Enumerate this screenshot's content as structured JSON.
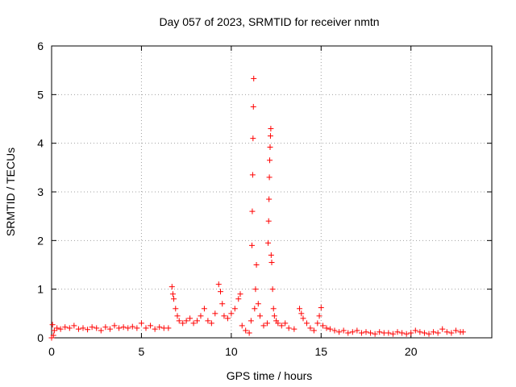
{
  "chart_data": {
    "type": "scatter",
    "title": "Day 057 of 2023, SRMTID for receiver nmtn",
    "xlabel": "GPS time / hours",
    "ylabel": "SRMTID / TECUs",
    "xlim": [
      0,
      24.5
    ],
    "ylim": [
      0,
      6
    ],
    "xticks": [
      "0",
      "5",
      "10",
      "15",
      "20"
    ],
    "yticks": [
      "0",
      "1",
      "2",
      "3",
      "4",
      "5",
      "6"
    ],
    "grid": true,
    "marker": "+",
    "color": "#ff0000",
    "series": [
      {
        "name": "SRMTID",
        "x": [
          0.0,
          0.05,
          0.1,
          0.15,
          0.3,
          0.5,
          0.75,
          1.0,
          1.25,
          1.5,
          1.75,
          2.0,
          2.25,
          2.5,
          2.75,
          3.0,
          3.25,
          3.5,
          3.75,
          4.0,
          4.25,
          4.5,
          4.75,
          5.0,
          5.25,
          5.5,
          5.75,
          6.0,
          6.25,
          6.5,
          6.7,
          6.75,
          6.8,
          6.9,
          7.0,
          7.1,
          7.3,
          7.5,
          7.7,
          7.9,
          8.1,
          8.3,
          8.5,
          8.7,
          8.9,
          9.1,
          9.3,
          9.4,
          9.5,
          9.6,
          9.8,
          10.0,
          10.2,
          10.4,
          10.5,
          10.6,
          10.8,
          11.0,
          11.1,
          11.15,
          11.17,
          11.19,
          11.21,
          11.23,
          11.25,
          11.3,
          11.35,
          11.4,
          11.5,
          11.6,
          11.8,
          12.0,
          12.05,
          12.08,
          12.1,
          12.12,
          12.14,
          12.16,
          12.18,
          12.2,
          12.22,
          12.25,
          12.3,
          12.35,
          12.4,
          12.5,
          12.6,
          12.8,
          13.0,
          13.2,
          13.5,
          13.8,
          13.9,
          14.0,
          14.2,
          14.4,
          14.6,
          14.8,
          14.9,
          15.0,
          15.1,
          15.3,
          15.5,
          15.75,
          16.0,
          16.25,
          16.5,
          16.75,
          17.0,
          17.25,
          17.5,
          17.75,
          18.0,
          18.25,
          18.5,
          18.75,
          19.0,
          19.25,
          19.5,
          19.75,
          20.0,
          20.25,
          20.5,
          20.75,
          21.0,
          21.25,
          21.5,
          21.75,
          22.0,
          22.25,
          22.5,
          22.75,
          22.9
        ],
        "y": [
          0.0,
          0.27,
          0.05,
          0.15,
          0.2,
          0.18,
          0.22,
          0.2,
          0.25,
          0.18,
          0.2,
          0.17,
          0.22,
          0.2,
          0.15,
          0.22,
          0.18,
          0.25,
          0.2,
          0.22,
          0.2,
          0.23,
          0.2,
          0.3,
          0.2,
          0.25,
          0.18,
          0.22,
          0.2,
          0.2,
          1.05,
          0.9,
          0.8,
          0.6,
          0.45,
          0.35,
          0.3,
          0.35,
          0.4,
          0.3,
          0.35,
          0.45,
          0.6,
          0.35,
          0.3,
          0.5,
          1.1,
          0.95,
          0.7,
          0.45,
          0.4,
          0.5,
          0.6,
          0.8,
          0.9,
          0.25,
          0.15,
          0.1,
          0.35,
          1.9,
          2.6,
          3.35,
          4.1,
          4.75,
          5.33,
          0.6,
          1.0,
          1.5,
          0.7,
          0.45,
          0.25,
          0.3,
          1.95,
          2.4,
          2.85,
          3.3,
          3.65,
          3.92,
          4.15,
          4.3,
          1.7,
          1.55,
          1.0,
          0.6,
          0.45,
          0.35,
          0.3,
          0.25,
          0.3,
          0.2,
          0.18,
          0.6,
          0.5,
          0.4,
          0.3,
          0.2,
          0.15,
          0.3,
          0.45,
          0.62,
          0.25,
          0.2,
          0.18,
          0.15,
          0.12,
          0.15,
          0.1,
          0.12,
          0.15,
          0.1,
          0.12,
          0.1,
          0.08,
          0.12,
          0.1,
          0.1,
          0.08,
          0.12,
          0.1,
          0.08,
          0.1,
          0.15,
          0.12,
          0.1,
          0.08,
          0.12,
          0.1,
          0.18,
          0.12,
          0.1,
          0.15,
          0.12,
          0.12
        ]
      }
    ]
  }
}
